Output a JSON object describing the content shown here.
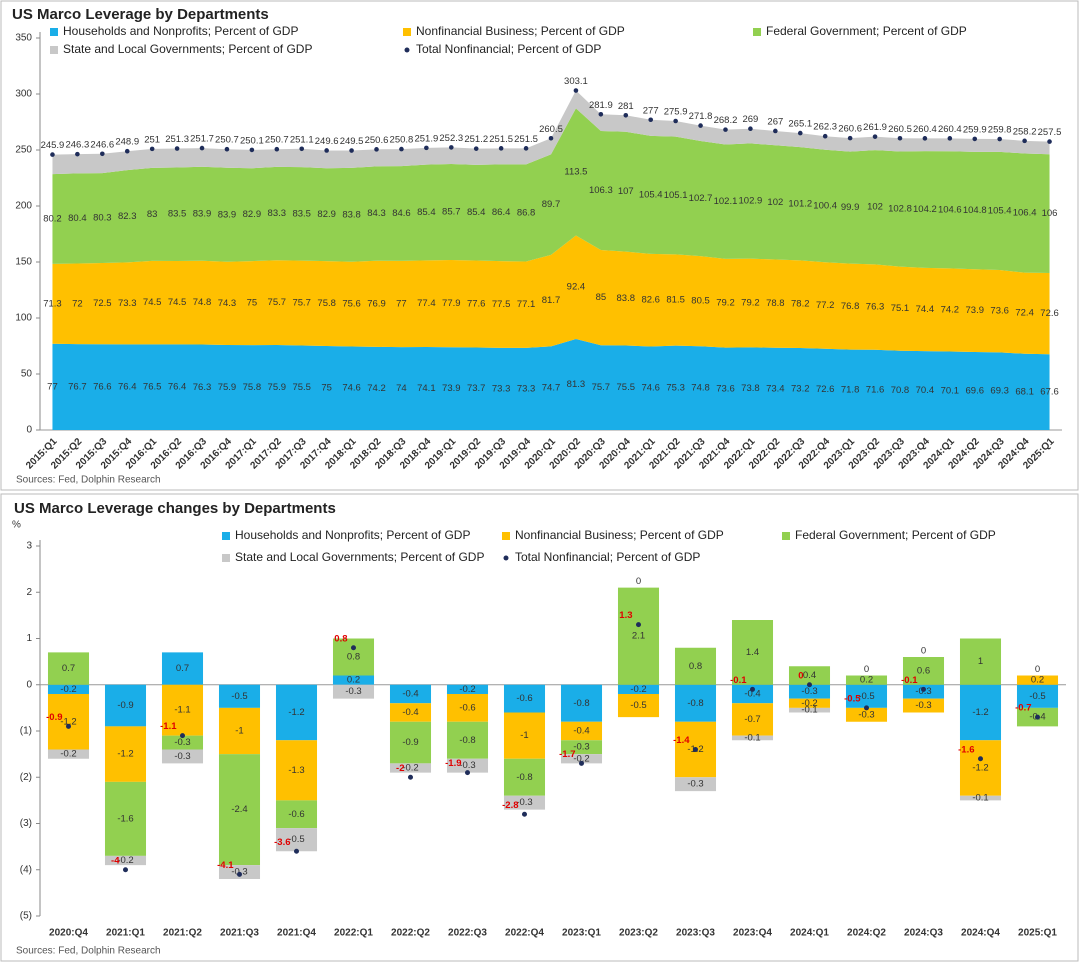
{
  "chart_data": [
    {
      "type": "area",
      "stacked": true,
      "title": "US Marco Leverage by Departments",
      "source": "Sources: Fed, Dolphin Research",
      "categories": [
        "2015:Q1",
        "2015:Q2",
        "2015:Q3",
        "2015:Q4",
        "2016:Q1",
        "2016:Q2",
        "2016:Q3",
        "2016:Q4",
        "2017:Q1",
        "2017:Q2",
        "2017:Q3",
        "2017:Q4",
        "2018:Q1",
        "2018:Q2",
        "2018:Q3",
        "2018:Q4",
        "2019:Q1",
        "2019:Q2",
        "2019:Q3",
        "2019:Q4",
        "2020:Q1",
        "2020:Q2",
        "2020:Q3",
        "2020:Q4",
        "2021:Q1",
        "2021:Q2",
        "2021:Q3",
        "2021:Q4",
        "2022:Q1",
        "2022:Q2",
        "2022:Q3",
        "2022:Q4",
        "2023:Q1",
        "2023:Q2",
        "2023:Q3",
        "2023:Q4",
        "2024:Q1",
        "2024:Q2",
        "2024:Q3",
        "2024:Q4",
        "2025:Q1"
      ],
      "ylim": [
        0,
        350
      ],
      "yticks": [
        0,
        50,
        100,
        150,
        200,
        250,
        300,
        350
      ],
      "series": [
        {
          "name": "Households and Nonprofits; Percent of GDP",
          "color": "#1aaee8",
          "labels": true,
          "values": [
            77,
            76.7,
            76.6,
            76.4,
            76.5,
            76.4,
            76.3,
            75.9,
            75.8,
            75.9,
            75.5,
            75,
            74.6,
            74.2,
            74,
            74.1,
            73.9,
            73.7,
            73.3,
            73.3,
            74.7,
            81.3,
            75.7,
            75.5,
            74.6,
            75.3,
            74.8,
            73.6,
            73.8,
            73.4,
            73.2,
            72.6,
            71.8,
            71.6,
            70.8,
            70.4,
            70.1,
            69.6,
            69.3,
            68.1,
            67.6
          ]
        },
        {
          "name": "Nonfinancial Business; Percent of GDP",
          "color": "#ffc000",
          "labels": true,
          "values": [
            71.3,
            72,
            72.5,
            73.3,
            74.5,
            74.5,
            74.8,
            74.3,
            75,
            75.7,
            75.7,
            75.8,
            75.6,
            76.9,
            77,
            77.4,
            77.9,
            77.6,
            77.5,
            77.1,
            81.7,
            92.4,
            85,
            83.8,
            82.6,
            81.5,
            80.5,
            79.2,
            79.2,
            78.8,
            78.2,
            77.2,
            76.8,
            76.3,
            75.1,
            74.4,
            74.2,
            73.9,
            73.6,
            72.4,
            72.6
          ]
        },
        {
          "name": "Federal Government; Percent of GDP",
          "color": "#92d050",
          "labels": true,
          "values": [
            80.2,
            80.4,
            80.3,
            82.3,
            83,
            83.5,
            83.9,
            83.9,
            82.9,
            83.3,
            83.5,
            82.9,
            83.8,
            84.3,
            84.6,
            85.4,
            85.7,
            85.4,
            86.4,
            86.8,
            89.7,
            113.5,
            106.3,
            107,
            105.4,
            105.1,
            102.7,
            102.1,
            102.9,
            102,
            101.2,
            100.4,
            99.9,
            102,
            102.8,
            104.2,
            104.6,
            104.8,
            105.4,
            106.4,
            106
          ]
        },
        {
          "name": "State and Local Governments; Percent of GDP",
          "color": "#c8c8c8",
          "labels": false,
          "values": [
            17.4,
            17.2,
            17.2,
            16.9,
            17,
            16.9,
            16.7,
            16.6,
            16.4,
            15.8,
            16.4,
            15.9,
            15.5,
            15.2,
            15.2,
            15,
            14.8,
            14.5,
            14.3,
            14.3,
            14.4,
            15.9,
            14.9,
            14.7,
            14.4,
            14,
            13.8,
            13.3,
            13.1,
            12.8,
            12.5,
            12.1,
            12.1,
            12,
            11.8,
            11.4,
            11.5,
            11.6,
            11.5,
            11.3,
            11.3
          ]
        },
        {
          "name": "Total Nonfinancial; Percent of GDP",
          "color": "#1f2d5a",
          "kind": "scatter",
          "labels": true,
          "values": [
            245.9,
            246.3,
            246.6,
            248.9,
            251,
            251.3,
            251.7,
            250.7,
            250.1,
            250.7,
            251.1,
            249.6,
            249.5,
            250.6,
            250.8,
            251.9,
            252.3,
            251.2,
            251.5,
            251.5,
            260.5,
            303.1,
            281.9,
            281,
            277,
            275.9,
            271.8,
            268.2,
            269,
            267,
            265.1,
            262.3,
            260.6,
            261.9,
            260.5,
            260.4,
            260.4,
            259.9,
            259.8,
            258.2,
            257.5
          ]
        }
      ]
    },
    {
      "type": "bar",
      "stacked": true,
      "title": "US Marco Leverage changes by Departments",
      "source": "Sources: Fed, Dolphin Research",
      "y_unit": "%",
      "categories": [
        "2020:Q4",
        "2021:Q1",
        "2021:Q2",
        "2021:Q3",
        "2021:Q4",
        "2022:Q1",
        "2022:Q2",
        "2022:Q3",
        "2022:Q4",
        "2023:Q1",
        "2023:Q2",
        "2023:Q3",
        "2023:Q4",
        "2024:Q1",
        "2024:Q2",
        "2024:Q3",
        "2024:Q4",
        "2025:Q1"
      ],
      "ylim": [
        -5,
        3
      ],
      "yticks": [
        {
          "value": -5,
          "label": "(5)"
        },
        {
          "value": -4,
          "label": "(4)"
        },
        {
          "value": -3,
          "label": "(3)"
        },
        {
          "value": -2,
          "label": "(2)"
        },
        {
          "value": -1,
          "label": "(1)"
        },
        0,
        1,
        2,
        3
      ],
      "series": [
        {
          "name": "Households and Nonprofits; Percent of GDP",
          "color": "#1aaee8",
          "labels": true,
          "values": [
            -0.2,
            -0.9,
            0.7,
            -0.5,
            -1.2,
            0.2,
            -0.4,
            -0.2,
            -0.6,
            -0.8,
            -0.2,
            -0.8,
            -0.4,
            -0.3,
            -0.5,
            -0.3,
            -1.2,
            -0.5
          ]
        },
        {
          "name": "Nonfinancial Business; Percent of GDP",
          "color": "#ffc000",
          "labels": true,
          "values": [
            -1.2,
            -1.2,
            -1.1,
            -1,
            -1.3,
            0,
            -0.4,
            -0.6,
            -1,
            -0.4,
            -0.5,
            -1.2,
            -0.7,
            -0.2,
            -0.3,
            -0.3,
            -1.2,
            0.2
          ]
        },
        {
          "name": "Federal Government; Percent of GDP",
          "color": "#92d050",
          "labels": true,
          "values": [
            0.7,
            -1.6,
            -0.3,
            -2.4,
            -0.6,
            0.8,
            -0.9,
            -0.8,
            -0.8,
            -0.3,
            2.1,
            0.8,
            1.4,
            0.4,
            0.2,
            0.6,
            1,
            -0.4
          ]
        },
        {
          "name": "State and Local Governments; Percent of GDP",
          "color": "#c8c8c8",
          "labels": true,
          "values": [
            -0.2,
            -0.2,
            -0.3,
            -0.3,
            -0.5,
            -0.3,
            -0.2,
            -0.3,
            -0.3,
            -0.2,
            0,
            -0.3,
            -0.1,
            -0.1,
            0,
            0,
            -0.1,
            0
          ]
        },
        {
          "name": "Total Nonfinancial; Percent of GDP",
          "color": "#1f2d5a",
          "kind": "scatter",
          "labels": true,
          "values": [
            -0.9,
            -4,
            -1.1,
            -4.1,
            -3.6,
            0.8,
            -2,
            -1.9,
            -2.8,
            -1.7,
            1.3,
            -1.4,
            -0.1,
            0,
            -0.5,
            -0.1,
            -1.6,
            -0.7
          ]
        }
      ]
    }
  ]
}
